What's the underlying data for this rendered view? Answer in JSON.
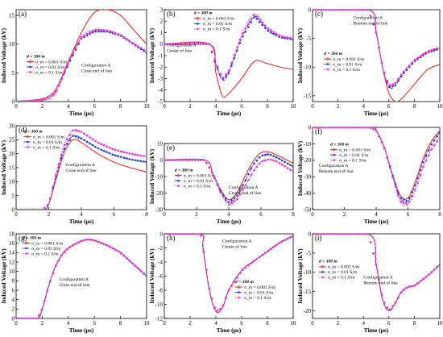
{
  "figure": {
    "ylabel": "Induced Voltage (kV)",
    "xlabel": "Time (μs)"
  },
  "colors": {
    "red": "#e8302a",
    "blue": "#1f3fd6",
    "magenta": "#ff2bd6"
  },
  "legend_common": {
    "title": "d = 300 m",
    "entries": [
      "σ_m = 0.001 S/m",
      "σ_m = 0.01 S/m",
      "σ_m = 0.1 S/m"
    ]
  },
  "chart_data": [
    {
      "panel": "(a)",
      "type": "line",
      "xlim": [
        0,
        10
      ],
      "ylim": [
        0,
        16
      ],
      "xticks": [
        0,
        2,
        4,
        6,
        8,
        10
      ],
      "yticks": [
        0,
        5,
        10,
        15
      ],
      "annotation": [
        "Configuration A",
        "Close end of line"
      ],
      "series": [
        {
          "name": "σ_m = 0.001 S/m",
          "x": [
            0,
            2,
            3,
            4,
            5,
            6,
            7,
            8,
            9,
            10
          ],
          "y": [
            0,
            0.5,
            2,
            7,
            12,
            15.5,
            16,
            15,
            12.5,
            10
          ]
        },
        {
          "name": "σ_m = 0.01 S/m",
          "x": [
            0,
            2,
            3,
            4,
            5,
            6,
            7,
            8,
            9,
            10
          ],
          "y": [
            0,
            0.2,
            1.5,
            6.5,
            11,
            12.2,
            12.2,
            11.5,
            10,
            8.5
          ]
        },
        {
          "name": "σ_m = 0.1 S/m",
          "x": [
            0,
            2,
            3,
            4,
            5,
            6,
            7,
            8,
            9,
            10
          ],
          "y": [
            0,
            0.2,
            1.5,
            6.8,
            11.2,
            12.5,
            12.4,
            11.6,
            10.1,
            8.7
          ]
        }
      ]
    },
    {
      "panel": "(b)",
      "type": "line",
      "xlim": [
        0,
        10
      ],
      "ylim": [
        -5,
        3
      ],
      "xticks": [
        0,
        2,
        4,
        6,
        8,
        10
      ],
      "yticks": [
        3,
        2,
        1,
        0,
        -1,
        -2,
        -3,
        -4,
        -5
      ],
      "annotation": [
        "Configuration A",
        "Center of line"
      ],
      "series": [
        {
          "name": "σ_m = 0.001 S/m",
          "x": [
            0,
            3.5,
            4,
            4.5,
            5,
            6,
            7,
            8,
            9,
            10
          ],
          "y": [
            0,
            0,
            -2.5,
            -4.5,
            -4.3,
            -3,
            -1.5,
            -1.7,
            -2,
            -2.2
          ]
        },
        {
          "name": "σ_m = 0.01 S/m",
          "x": [
            0,
            3.5,
            4,
            4.5,
            5,
            6,
            7,
            8,
            9,
            10
          ],
          "y": [
            0,
            0,
            -1.8,
            -3.1,
            -2.5,
            0.5,
            2.4,
            1.2,
            0.6,
            0.4
          ]
        },
        {
          "name": "σ_m = 0.1 S/m",
          "x": [
            0,
            3.5,
            4,
            4.5,
            5,
            6,
            7,
            8,
            9,
            10
          ],
          "y": [
            0,
            0,
            -1.6,
            -3,
            -2.3,
            0.8,
            2.6,
            1.4,
            0.7,
            0.5
          ]
        }
      ]
    },
    {
      "panel": "(c)",
      "type": "line",
      "xlim": [
        0,
        10
      ],
      "ylim": [
        -16,
        0
      ],
      "xticks": [
        0,
        2,
        4,
        6,
        8,
        10
      ],
      "yticks": [
        0,
        -5,
        -10,
        -15
      ],
      "annotation": [
        "Configuration A",
        "Remote end of line"
      ],
      "series": [
        {
          "name": "σ_m = 0.001 S/m",
          "x": [
            0,
            4.4,
            5,
            5.5,
            6,
            6.5,
            7,
            8,
            9,
            10
          ],
          "y": [
            0,
            0,
            -4,
            -10,
            -14.5,
            -16,
            -15.5,
            -13,
            -10.5,
            -9.5
          ]
        },
        {
          "name": "σ_m = 0.01 S/m",
          "x": [
            0,
            4.4,
            5,
            5.5,
            6,
            6.5,
            7,
            8,
            9,
            10
          ],
          "y": [
            0,
            0,
            -4,
            -10,
            -13.5,
            -13.2,
            -11.5,
            -9,
            -7.5,
            -6.8
          ]
        },
        {
          "name": "σ_m = 0.1 S/m",
          "x": [
            0,
            4.4,
            5,
            5.5,
            6,
            6.5,
            7,
            8,
            9,
            10
          ],
          "y": [
            0,
            0,
            -4,
            -10,
            -13.2,
            -12.8,
            -11.2,
            -8.8,
            -7.3,
            -6.6
          ]
        }
      ]
    },
    {
      "panel": "(d)",
      "type": "line",
      "xlim": [
        0,
        8
      ],
      "ylim": [
        0,
        30
      ],
      "xticks": [
        0,
        2,
        4,
        6,
        8
      ],
      "yticks": [
        0,
        5,
        10,
        15,
        20,
        25,
        30
      ],
      "annotation": [
        "Configuration A",
        "Close end of line"
      ],
      "series": [
        {
          "name": "σ_m = 0.001 S/m",
          "x": [
            0,
            1.6,
            2,
            2.5,
            3,
            3.5,
            4,
            5,
            6,
            7,
            8
          ],
          "y": [
            0,
            0,
            2,
            12,
            21,
            25,
            24,
            20,
            17,
            15,
            13.5
          ]
        },
        {
          "name": "σ_m = 0.01 S/m",
          "x": [
            0,
            1.6,
            2,
            2.5,
            3,
            3.5,
            4,
            5,
            6,
            7,
            8
          ],
          "y": [
            0,
            0,
            2,
            13,
            22.5,
            26.5,
            25.5,
            22,
            19.5,
            18,
            17
          ]
        },
        {
          "name": "σ_m = 0.1 S/m",
          "x": [
            0,
            1.6,
            2,
            2.5,
            3,
            3.5,
            4,
            5,
            6,
            7,
            8
          ],
          "y": [
            0,
            0,
            2,
            14,
            24,
            28.5,
            27.8,
            24,
            21.5,
            20,
            19
          ]
        }
      ]
    },
    {
      "panel": "(e)",
      "type": "line",
      "xlim": [
        0,
        8
      ],
      "ylim": [
        -30,
        10
      ],
      "xticks": [
        0,
        2,
        4,
        6,
        8
      ],
      "yticks": [
        10,
        0,
        -10,
        -20,
        -30
      ],
      "annotation": [
        "Configuration A",
        "Center end of line"
      ],
      "series": [
        {
          "name": "σ_m = 0.001 S/m",
          "x": [
            0,
            2.5,
            3,
            3.5,
            4,
            4.5,
            5,
            5.5,
            6,
            6.5,
            7,
            8
          ],
          "y": [
            0,
            0,
            -8,
            -18,
            -24,
            -20,
            -10,
            -1,
            4.5,
            4.8,
            3,
            -2
          ]
        },
        {
          "name": "σ_m = 0.01 S/m",
          "x": [
            0,
            2.5,
            3,
            3.5,
            4,
            4.5,
            5,
            5.5,
            6,
            6.5,
            7,
            8
          ],
          "y": [
            0,
            0,
            -8,
            -19,
            -25.5,
            -22,
            -13,
            -3,
            2.5,
            3.5,
            1.5,
            -4
          ]
        },
        {
          "name": "σ_m = 0.1 S/m",
          "x": [
            0,
            2.5,
            3,
            3.5,
            4,
            4.5,
            5,
            5.5,
            6,
            6.5,
            7,
            8
          ],
          "y": [
            0,
            0,
            -8,
            -20,
            -27,
            -24,
            -16,
            -7,
            -1,
            0.5,
            -1,
            -7
          ]
        }
      ]
    },
    {
      "panel": "(f)",
      "type": "line",
      "xlim": [
        0,
        8
      ],
      "ylim": [
        -50,
        0
      ],
      "xticks": [
        0,
        2,
        4,
        6,
        8
      ],
      "yticks": [
        0,
        -10,
        -20,
        -30,
        -40,
        -50
      ],
      "annotation": [
        "Configuration A",
        "Remote end of line"
      ],
      "series": [
        {
          "name": "σ_m = 0.001 S/m",
          "x": [
            0,
            3.6,
            4,
            4.5,
            5,
            5.5,
            6,
            6.5,
            7,
            7.5,
            8
          ],
          "y": [
            0,
            0,
            -2,
            -12,
            -28,
            -41,
            -43,
            -32,
            -18,
            -8,
            -2
          ]
        },
        {
          "name": "σ_m = 0.01 S/m",
          "x": [
            0,
            3.6,
            4,
            4.5,
            5,
            5.5,
            6,
            6.5,
            7,
            7.5,
            8
          ],
          "y": [
            0,
            0,
            -2,
            -12,
            -28,
            -43,
            -45,
            -34,
            -20,
            -10,
            -3
          ]
        },
        {
          "name": "σ_m = 0.1 S/m",
          "x": [
            0,
            3.6,
            4,
            4.5,
            5,
            5.5,
            6,
            6.5,
            7,
            7.5,
            8
          ],
          "y": [
            0,
            0,
            -2,
            -12,
            -29,
            -45,
            -47,
            -37,
            -23,
            -13,
            -6
          ]
        }
      ]
    },
    {
      "panel": "(g)",
      "type": "line",
      "xlim": [
        0,
        10
      ],
      "ylim": [
        0,
        18
      ],
      "xticks": [
        0,
        2,
        4,
        6,
        8,
        10
      ],
      "yticks": [
        0,
        2,
        4,
        6,
        8,
        10,
        12,
        14,
        16,
        18
      ],
      "annotation": [
        "Configuration A",
        "Close end of line"
      ],
      "series": [
        {
          "name": "σ_m = 0.001 S/m",
          "x": [
            0,
            1.6,
            2,
            2.5,
            3,
            3.5,
            4,
            5,
            5.5,
            6,
            7,
            8,
            9,
            10
          ],
          "y": [
            0,
            0,
            2,
            7,
            11,
            13.5,
            15,
            16.5,
            16.8,
            16.6,
            15.5,
            14,
            11.5,
            9
          ]
        },
        {
          "name": "σ_m = 0.01 S/m",
          "x": [
            0,
            1.6,
            2,
            2.5,
            3,
            3.5,
            4,
            5,
            5.5,
            6,
            7,
            8,
            9,
            10
          ],
          "y": [
            0,
            0,
            2,
            7,
            11,
            13.5,
            15,
            16.5,
            16.8,
            16.6,
            15.5,
            14,
            11.5,
            9
          ]
        },
        {
          "name": "σ_m = 0.1 S/m",
          "x": [
            0,
            1.6,
            2,
            2.5,
            3,
            3.5,
            4,
            5,
            5.5,
            6,
            7,
            8,
            9,
            10
          ],
          "y": [
            0,
            0,
            2,
            7,
            11,
            13.5,
            15,
            16.5,
            16.8,
            16.6,
            15.5,
            14,
            11.5,
            9
          ]
        }
      ]
    },
    {
      "panel": "(h)",
      "type": "line",
      "xlim": [
        0,
        10
      ],
      "ylim": [
        -12,
        0
      ],
      "xticks": [
        0,
        2,
        4,
        6,
        8,
        10
      ],
      "yticks": [
        0,
        -2,
        -4,
        -6,
        -8,
        -10,
        -12
      ],
      "annotation": [
        "Configuration A",
        "Center of line"
      ],
      "series": [
        {
          "name": "σ_m = 0.001 S/m",
          "x": [
            0,
            2.8,
            3,
            3.5,
            4,
            4.5,
            5,
            6,
            7,
            8,
            9,
            10
          ],
          "y": [
            0,
            0,
            -2,
            -8,
            -11,
            -10.5,
            -8,
            -5.2,
            -3.8,
            -2.5,
            -1.2,
            -0.3
          ]
        },
        {
          "name": "σ_m = 0.01 S/m",
          "x": [
            0,
            2.8,
            3,
            3.5,
            4,
            4.5,
            5,
            6,
            7,
            8,
            9,
            10
          ],
          "y": [
            0,
            0,
            -2,
            -8,
            -11,
            -10.5,
            -8,
            -5.2,
            -3.8,
            -2.5,
            -1.2,
            -0.3
          ]
        },
        {
          "name": "σ_m = 0.1 S/m",
          "x": [
            0,
            2.8,
            3,
            3.5,
            4,
            4.5,
            5,
            6,
            7,
            8,
            9,
            10
          ],
          "y": [
            0,
            0,
            -2,
            -8,
            -11,
            -10.5,
            -8,
            -5.2,
            -3.8,
            -2.5,
            -1.2,
            -0.3
          ]
        }
      ]
    },
    {
      "panel": "(i)",
      "type": "line",
      "xlim": [
        0,
        10
      ],
      "ylim": [
        -22,
        0
      ],
      "xticks": [
        0,
        2,
        4,
        6,
        8,
        10
      ],
      "yticks": [
        0,
        -5,
        -10,
        -15,
        -20
      ],
      "annotation": [
        "Configuration A",
        "Remote end of line"
      ],
      "series": [
        {
          "name": "σ_m = 0.001 S/m",
          "x": [
            0,
            4.4,
            5,
            5.5,
            6,
            6.5,
            7,
            7.5,
            8,
            9,
            10
          ],
          "y": [
            0,
            0,
            -8,
            -17,
            -20,
            -18,
            -15,
            -13.8,
            -13.5,
            -11,
            -8
          ]
        },
        {
          "name": "σ_m = 0.01 S/m",
          "x": [
            0,
            4.4,
            5,
            5.5,
            6,
            6.5,
            7,
            7.5,
            8,
            9,
            10
          ],
          "y": [
            0,
            0,
            -8,
            -17,
            -20,
            -18,
            -15,
            -13.8,
            -13.5,
            -11,
            -8
          ]
        },
        {
          "name": "σ_m = 0.1 S/m",
          "x": [
            0,
            4.4,
            5,
            5.5,
            6,
            6.5,
            7,
            7.5,
            8,
            9,
            10
          ],
          "y": [
            0,
            0,
            -8,
            -17,
            -20,
            -18,
            -15,
            -13.8,
            -13.5,
            -11,
            -8
          ]
        }
      ]
    }
  ]
}
